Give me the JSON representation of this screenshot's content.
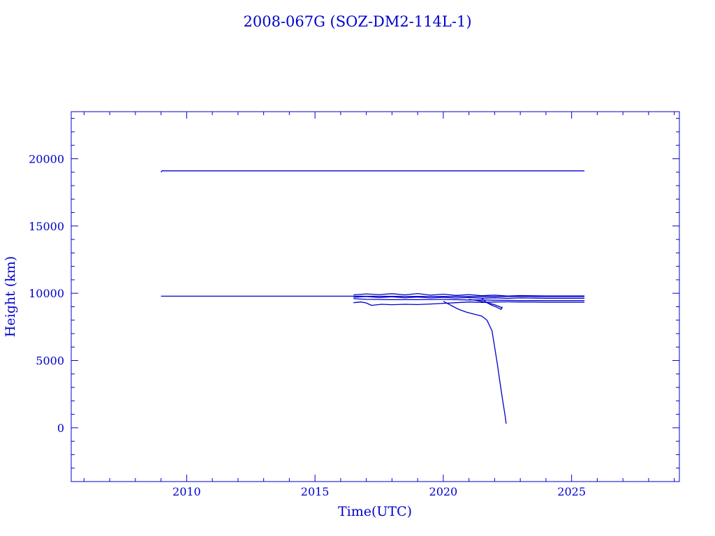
{
  "chart_data": {
    "type": "line",
    "title": "2008-067G (SOZ-DM2-114L-1)",
    "xlabel": "Time(UTC)",
    "ylabel": "Height (km)",
    "xlim": [
      2005.5,
      2029.2
    ],
    "ylim": [
      -4000,
      23500
    ],
    "x_ticks": [
      2010,
      2015,
      2020,
      2025
    ],
    "y_ticks": [
      0,
      5000,
      10000,
      15000,
      20000
    ],
    "grid": false,
    "color": "#0000cc",
    "series": [
      {
        "x": [
          2009.0,
          2009.05,
          2009.1,
          2012.0,
          2016.0,
          2020.0,
          2025.5
        ],
        "y": [
          19000,
          19120,
          19100,
          19100,
          19100,
          19100,
          19100
        ]
      },
      {
        "x": [
          2009.0,
          2012.0,
          2016.5,
          2020.0,
          2025.5
        ],
        "y": [
          9780,
          9780,
          9780,
          9760,
          9760
        ]
      },
      {
        "x": [
          2016.5,
          2017.0,
          2017.5,
          2018.0,
          2018.5,
          2019.0,
          2019.5,
          2020.0,
          2020.5,
          2021.0,
          2021.5,
          2022.0,
          2022.5,
          2023.0,
          2024.0,
          2025.5
        ],
        "y": [
          9880,
          9950,
          9900,
          9970,
          9880,
          9980,
          9860,
          9930,
          9840,
          9900,
          9820,
          9860,
          9790,
          9830,
          9800,
          9800
        ]
      },
      {
        "x": [
          2016.5,
          2017.0,
          2017.5,
          2018.0,
          2018.5,
          2019.0,
          2019.5,
          2020.0,
          2020.5,
          2021.0,
          2021.5,
          2022.0,
          2022.5,
          2023.0,
          2024.0,
          2025.5
        ],
        "y": [
          9700,
          9760,
          9680,
          9740,
          9660,
          9720,
          9650,
          9700,
          9640,
          9680,
          9630,
          9660,
          9620,
          9650,
          9630,
          9630
        ]
      },
      {
        "x": [
          2016.5,
          2017.0,
          2018.0,
          2019.0,
          2020.0,
          2021.0,
          2021.5,
          2022.0,
          2023.0,
          2024.0,
          2025.5
        ],
        "y": [
          9600,
          9550,
          9520,
          9520,
          9540,
          9500,
          9500,
          9480,
          9460,
          9450,
          9450
        ]
      },
      {
        "x": [
          2016.5,
          2016.8,
          2017.0,
          2017.2,
          2017.6,
          2018.0,
          2018.5,
          2019.0,
          2019.5,
          2020.0,
          2020.5,
          2021.0,
          2021.5,
          2022.0,
          2022.5,
          2023.0,
          2024.0,
          2025.5
        ],
        "y": [
          9300,
          9350,
          9280,
          9100,
          9180,
          9150,
          9180,
          9160,
          9200,
          9250,
          9300,
          9350,
          9320,
          9350,
          9360,
          9350,
          9330,
          9330
        ]
      },
      {
        "x": [
          2020.0,
          2020.3,
          2020.6,
          2020.9,
          2021.2,
          2021.5,
          2021.7,
          2021.9,
          2022.0,
          2022.1,
          2022.2,
          2022.3,
          2022.4,
          2022.45
        ],
        "y": [
          9400,
          9100,
          8800,
          8600,
          8450,
          8300,
          8000,
          7200,
          6000,
          4800,
          3500,
          2200,
          1000,
          300
        ]
      },
      {
        "x": [
          2021.5,
          2021.7,
          2021.9,
          2022.1,
          2022.2,
          2022.25,
          2022.3
        ],
        "y": [
          9600,
          9300,
          9100,
          8950,
          8850,
          8800,
          9000
        ]
      },
      {
        "x": [
          2021.0,
          2021.5,
          2021.8,
          2022.0,
          2022.2,
          2022.3
        ],
        "y": [
          9550,
          9400,
          9250,
          9150,
          9000,
          8900
        ]
      }
    ]
  }
}
